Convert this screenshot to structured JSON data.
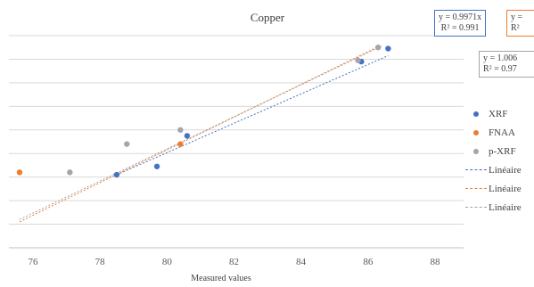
{
  "chart_data": {
    "type": "scatter",
    "title": "Copper",
    "xlabel": "Measured values",
    "ylabel": "",
    "xlim": [
      75.5,
      88
    ],
    "ylim": [
      72,
      90
    ],
    "grid": "horizontal",
    "x_ticks": [
      "76",
      "78",
      "80",
      "82",
      "84",
      "86",
      "88"
    ],
    "legend_position": "right",
    "series": [
      {
        "name": "XRF",
        "color": "#4472c4",
        "points": [
          [
            78.5,
            78.2
          ],
          [
            79.7,
            78.9
          ],
          [
            80.6,
            81.5
          ],
          [
            85.8,
            87.8
          ],
          [
            86.6,
            88.9
          ]
        ]
      },
      {
        "name": "FNAA",
        "color": "#ed7d31",
        "points": [
          [
            75.6,
            78.4
          ],
          [
            80.4,
            80.8
          ]
        ]
      },
      {
        "name": "p-XRF",
        "color": "#a5a5a5",
        "points": [
          [
            77.1,
            78.4
          ],
          [
            78.8,
            80.8
          ],
          [
            80.4,
            82.0
          ],
          [
            85.7,
            87.9
          ],
          [
            86.3,
            89.0
          ]
        ]
      }
    ],
    "trendlines": [
      {
        "name": "Linéaire (XRF)",
        "color": "#4472c4",
        "style": "dashed",
        "x_range": [
          78.5,
          86.6
        ],
        "points": [
          [
            78.5,
            78.2
          ],
          [
            86.6,
            88.3
          ]
        ]
      },
      {
        "name": "Linéaire (FNAA)",
        "color": "#ed7d31",
        "style": "dashed",
        "x_range": [
          75.6,
          86.4
        ],
        "points": [
          [
            75.6,
            74.2
          ],
          [
            86.4,
            89.2
          ]
        ]
      },
      {
        "name": "Linéaire (p-XRF)",
        "color": "#a5a5a5",
        "style": "dashed",
        "x_range": [
          75.6,
          86.4
        ],
        "points": [
          [
            75.6,
            74.4
          ],
          [
            86.4,
            89.1
          ]
        ]
      }
    ],
    "equations": [
      {
        "line1": "y = 0.9971x",
        "line2": "R² = 0.991",
        "color": "#4472c4"
      },
      {
        "line1": "y =",
        "line2": "R²",
        "color": "#ed7d31"
      },
      {
        "line1": "y = 1.006",
        "line2": "R² = 0.97",
        "color": "#a5a5a5"
      }
    ],
    "legend": [
      "XRF",
      "FNAA",
      "p-XRF",
      "Linéaire",
      "Linéaire",
      "Linéaire"
    ]
  }
}
